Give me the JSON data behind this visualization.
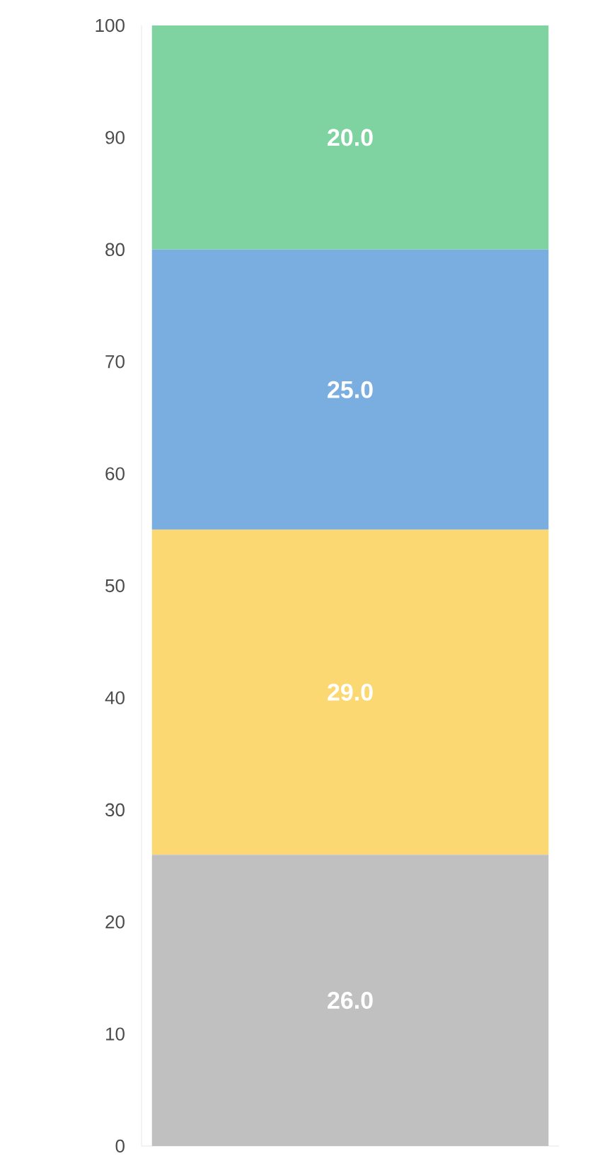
{
  "chart_data": {
    "type": "bar",
    "stacked": true,
    "categories": [
      null
    ],
    "ylim": [
      0,
      100
    ],
    "yticks": [
      0,
      10,
      20,
      30,
      40,
      50,
      60,
      70,
      80,
      90,
      100
    ],
    "tick_labels": "y",
    "series": [
      {
        "color": "#c0c0c0",
        "values": [
          26
        ],
        "value_labels": [
          "26.0"
        ]
      },
      {
        "color": "#fcd872",
        "values": [
          29
        ],
        "value_labels": [
          "29.0"
        ]
      },
      {
        "color": "#7aaee0",
        "values": [
          25
        ],
        "value_labels": [
          "25.0"
        ]
      },
      {
        "color": "#7fd3a0",
        "values": [
          20
        ],
        "value_labels": [
          "20.0"
        ]
      }
    ]
  }
}
